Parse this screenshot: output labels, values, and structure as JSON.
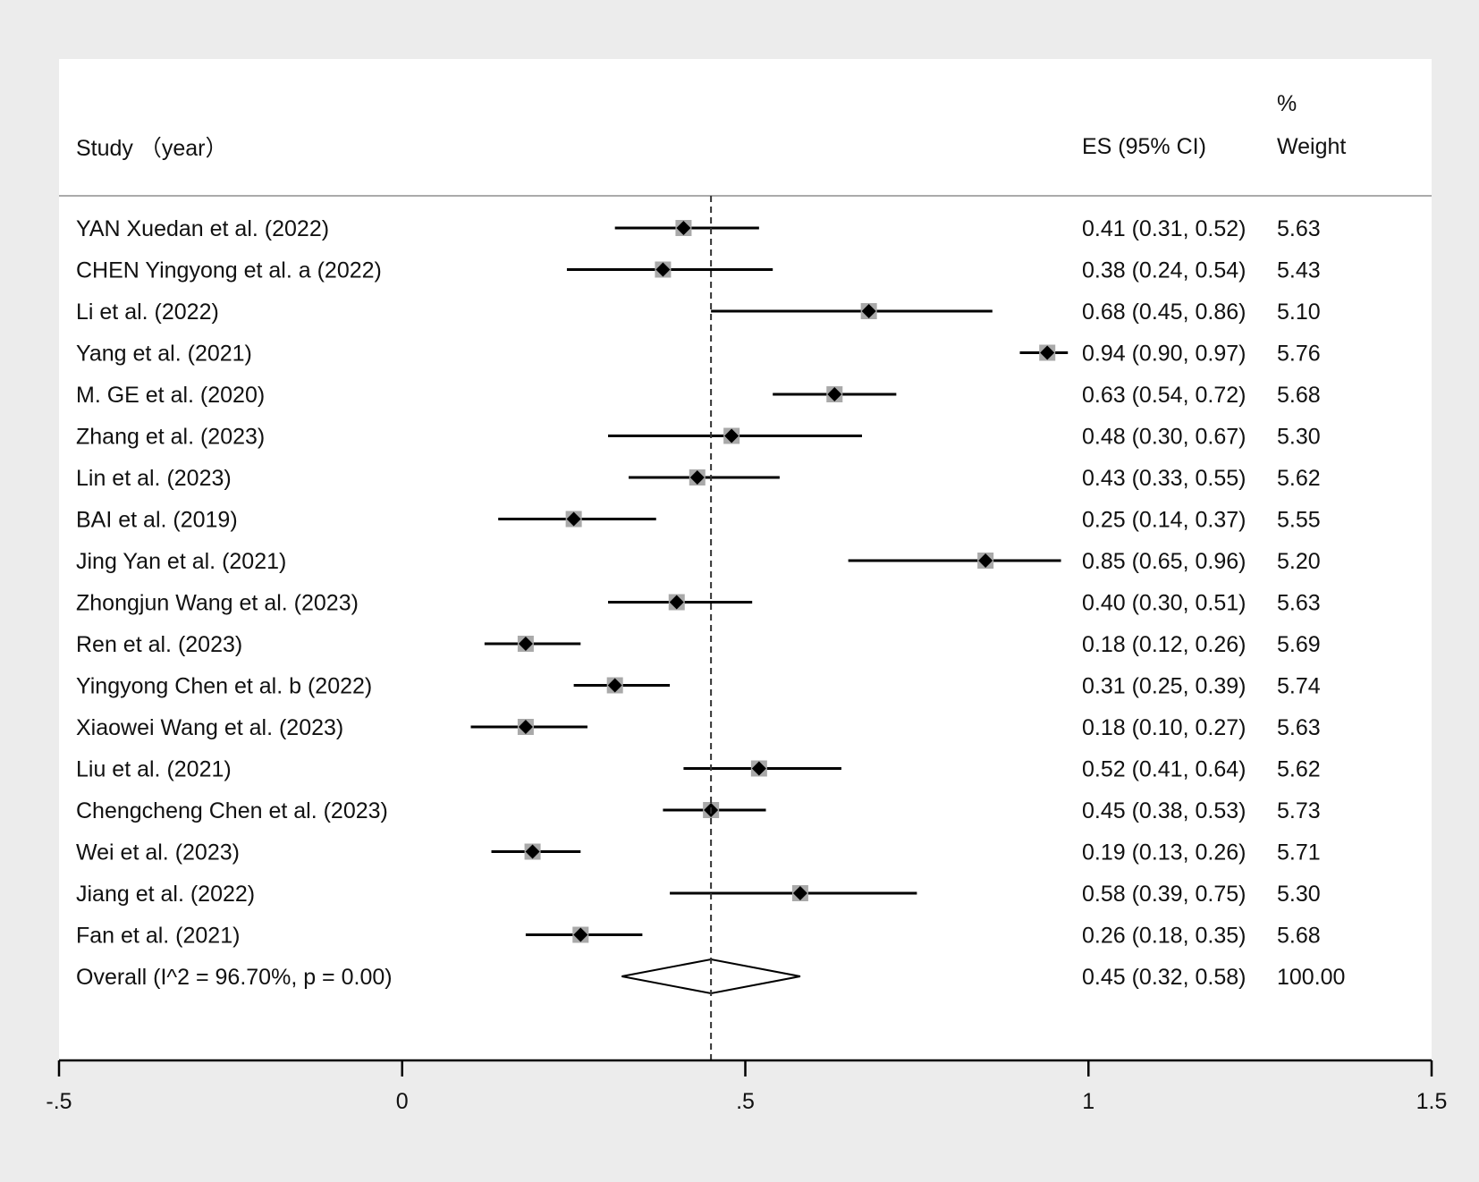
{
  "chart_data": {
    "type": "forest",
    "header": {
      "study": "Study （year）",
      "es": "ES (95% CI)",
      "weight_line1": "%",
      "weight_line2": "Weight"
    },
    "reference_value": 0.45,
    "xlim": [
      -0.5,
      1.5
    ],
    "xticks": [
      {
        "value": -0.5,
        "label": "-.5"
      },
      {
        "value": 0,
        "label": "0"
      },
      {
        "value": 0.5,
        "label": ".5"
      },
      {
        "value": 1,
        "label": "1"
      },
      {
        "value": 1.5,
        "label": "1.5"
      }
    ],
    "studies": [
      {
        "study": "YAN Xuedan et al. (2022)",
        "es": 0.41,
        "lower": 0.31,
        "upper": 0.52,
        "ci_text": "0.41 (0.31, 0.52)",
        "weight": "5.63"
      },
      {
        "study": "CHEN Yingyong et al. a (2022)",
        "es": 0.38,
        "lower": 0.24,
        "upper": 0.54,
        "ci_text": "0.38 (0.24, 0.54)",
        "weight": "5.43"
      },
      {
        "study": "Li et al.  (2022)",
        "es": 0.68,
        "lower": 0.45,
        "upper": 0.86,
        "ci_text": "0.68 (0.45, 0.86)",
        "weight": "5.10"
      },
      {
        "study": "Yang et al.  (2021)",
        "es": 0.94,
        "lower": 0.9,
        "upper": 0.97,
        "ci_text": "0.94 (0.90, 0.97)",
        "weight": "5.76"
      },
      {
        "study": "M. GE et al.  (2020)",
        "es": 0.63,
        "lower": 0.54,
        "upper": 0.72,
        "ci_text": "0.63 (0.54, 0.72)",
        "weight": "5.68"
      },
      {
        "study": "Zhang et al.  (2023)",
        "es": 0.48,
        "lower": 0.3,
        "upper": 0.67,
        "ci_text": "0.48 (0.30, 0.67)",
        "weight": "5.30"
      },
      {
        "study": "Lin et al. (2023)",
        "es": 0.43,
        "lower": 0.33,
        "upper": 0.55,
        "ci_text": "0.43 (0.33, 0.55)",
        "weight": "5.62"
      },
      {
        "study": "BAI et al. (2019)",
        "es": 0.25,
        "lower": 0.14,
        "upper": 0.37,
        "ci_text": "0.25 (0.14, 0.37)",
        "weight": "5.55"
      },
      {
        "study": "Jing Yan et al. (2021)",
        "es": 0.85,
        "lower": 0.65,
        "upper": 0.96,
        "ci_text": "0.85 (0.65, 0.96)",
        "weight": "5.20"
      },
      {
        "study": "Zhongjun Wang et al. (2023)",
        "es": 0.4,
        "lower": 0.3,
        "upper": 0.51,
        "ci_text": "0.40 (0.30, 0.51)",
        "weight": "5.63"
      },
      {
        "study": "Ren et al.  (2023)",
        "es": 0.18,
        "lower": 0.12,
        "upper": 0.26,
        "ci_text": "0.18 (0.12, 0.26)",
        "weight": "5.69"
      },
      {
        "study": "Yingyong Chen et al. b (2022)",
        "es": 0.31,
        "lower": 0.25,
        "upper": 0.39,
        "ci_text": "0.31 (0.25, 0.39)",
        "weight": "5.74"
      },
      {
        "study": "Xiaowei Wang  et al.  (2023)",
        "es": 0.18,
        "lower": 0.1,
        "upper": 0.27,
        "ci_text": "0.18 (0.10, 0.27)",
        "weight": "5.63"
      },
      {
        "study": "Liu et al. (2021)",
        "es": 0.52,
        "lower": 0.41,
        "upper": 0.64,
        "ci_text": "0.52 (0.41, 0.64)",
        "weight": "5.62"
      },
      {
        "study": "Chengcheng Chen et al. (2023)",
        "es": 0.45,
        "lower": 0.38,
        "upper": 0.53,
        "ci_text": "0.45 (0.38, 0.53)",
        "weight": "5.73"
      },
      {
        "study": "Wei et al. (2023)",
        "es": 0.19,
        "lower": 0.13,
        "upper": 0.26,
        "ci_text": "0.19 (0.13, 0.26)",
        "weight": "5.71"
      },
      {
        "study": "Jiang et al. (2022)",
        "es": 0.58,
        "lower": 0.39,
        "upper": 0.75,
        "ci_text": "0.58 (0.39, 0.75)",
        "weight": "5.30"
      },
      {
        "study": "Fan et al. (2021)",
        "es": 0.26,
        "lower": 0.18,
        "upper": 0.35,
        "ci_text": "0.26 (0.18, 0.35)",
        "weight": "5.68"
      }
    ],
    "overall": {
      "label": "Overall  (I^2 = 96.70%, p = 0.00)",
      "es": 0.45,
      "lower": 0.32,
      "upper": 0.58,
      "ci_text": "0.45 (0.32, 0.58)",
      "weight": "100.00"
    }
  }
}
